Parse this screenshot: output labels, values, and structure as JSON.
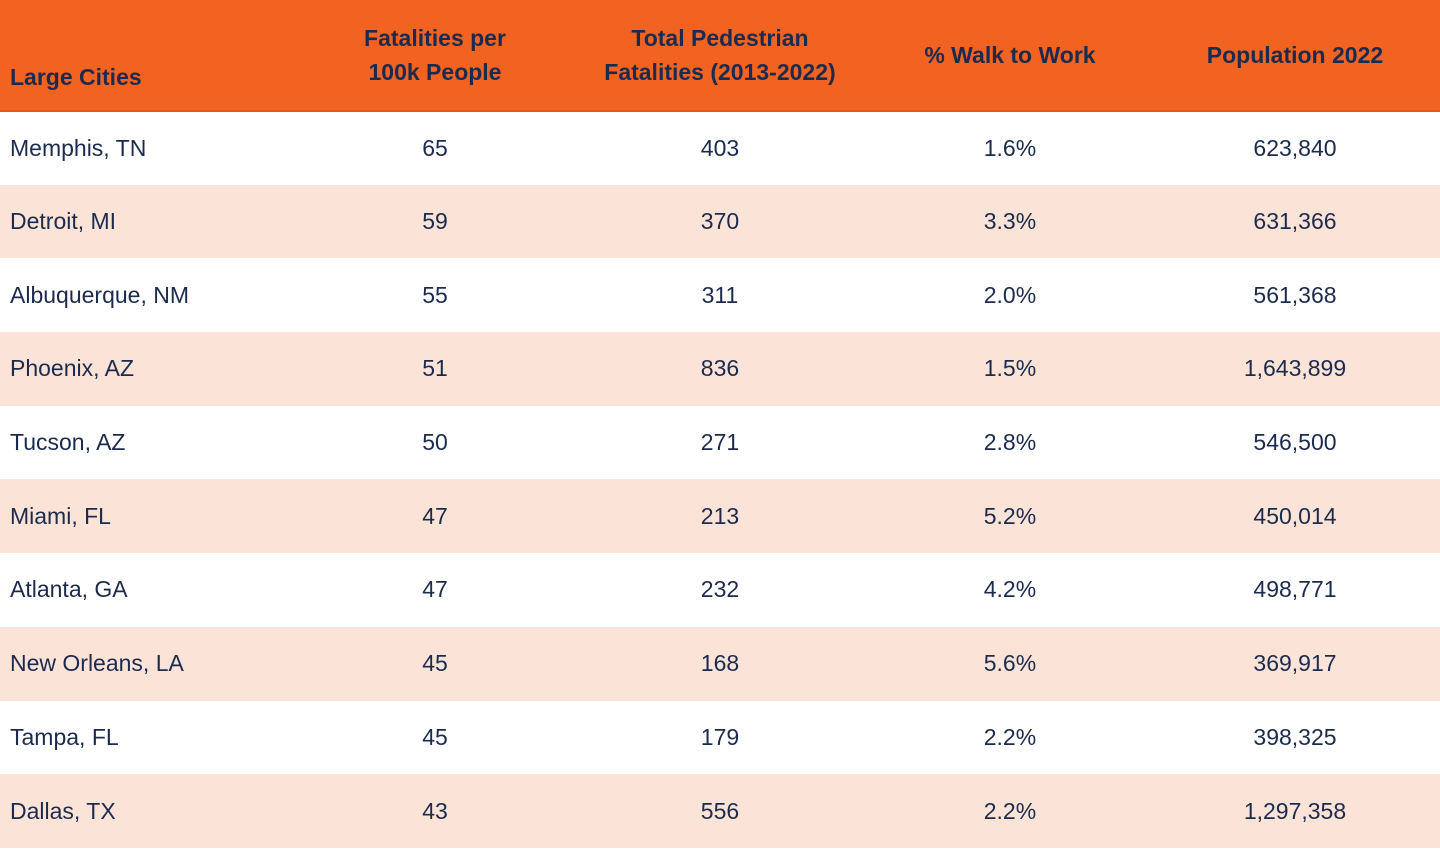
{
  "chart_data": {
    "type": "table",
    "columns": [
      {
        "id": "city",
        "label": "Large Cities",
        "lines": [
          "Large Cities"
        ]
      },
      {
        "id": "fatalities_per_100k",
        "label": "Fatalities per 100k People",
        "lines": [
          "Fatalities per",
          "100k People"
        ]
      },
      {
        "id": "total_fatalities",
        "label": "Total Pedestrian Fatalities (2013-2022)",
        "lines": [
          "Total Pedestrian",
          "Fatalities (2013-2022)"
        ]
      },
      {
        "id": "pct_walk_to_work",
        "label": "% Walk to Work",
        "lines": [
          "% Walk to Work"
        ]
      },
      {
        "id": "population_2022",
        "label": "Population 2022",
        "lines": [
          "Population 2022"
        ]
      }
    ],
    "rows": [
      [
        "Memphis, TN",
        "65",
        "403",
        "1.6%",
        "623,840"
      ],
      [
        "Detroit, MI",
        "59",
        "370",
        "3.3%",
        "631,366"
      ],
      [
        "Albuquerque, NM",
        "55",
        "311",
        "2.0%",
        "561,368"
      ],
      [
        "Phoenix, AZ",
        "51",
        "836",
        "1.5%",
        "1,643,899"
      ],
      [
        "Tucson, AZ",
        "50",
        "271",
        "2.8%",
        "546,500"
      ],
      [
        "Miami, FL",
        "47",
        "213",
        "5.2%",
        "450,014"
      ],
      [
        "Atlanta, GA",
        "47",
        "232",
        "4.2%",
        "498,771"
      ],
      [
        "New Orleans, LA",
        "45",
        "168",
        "5.6%",
        "369,917"
      ],
      [
        "Tampa, FL",
        "45",
        "179",
        "2.2%",
        "398,325"
      ],
      [
        "Dallas, TX",
        "43",
        "556",
        "2.2%",
        "1,297,358"
      ]
    ]
  },
  "colors": {
    "header_bg": "#F26322",
    "header_border": "#E25A1C",
    "row_bg": "#FFFFFF",
    "row_alt_bg": "#FCE3D8",
    "text": "#1C2B4D"
  }
}
